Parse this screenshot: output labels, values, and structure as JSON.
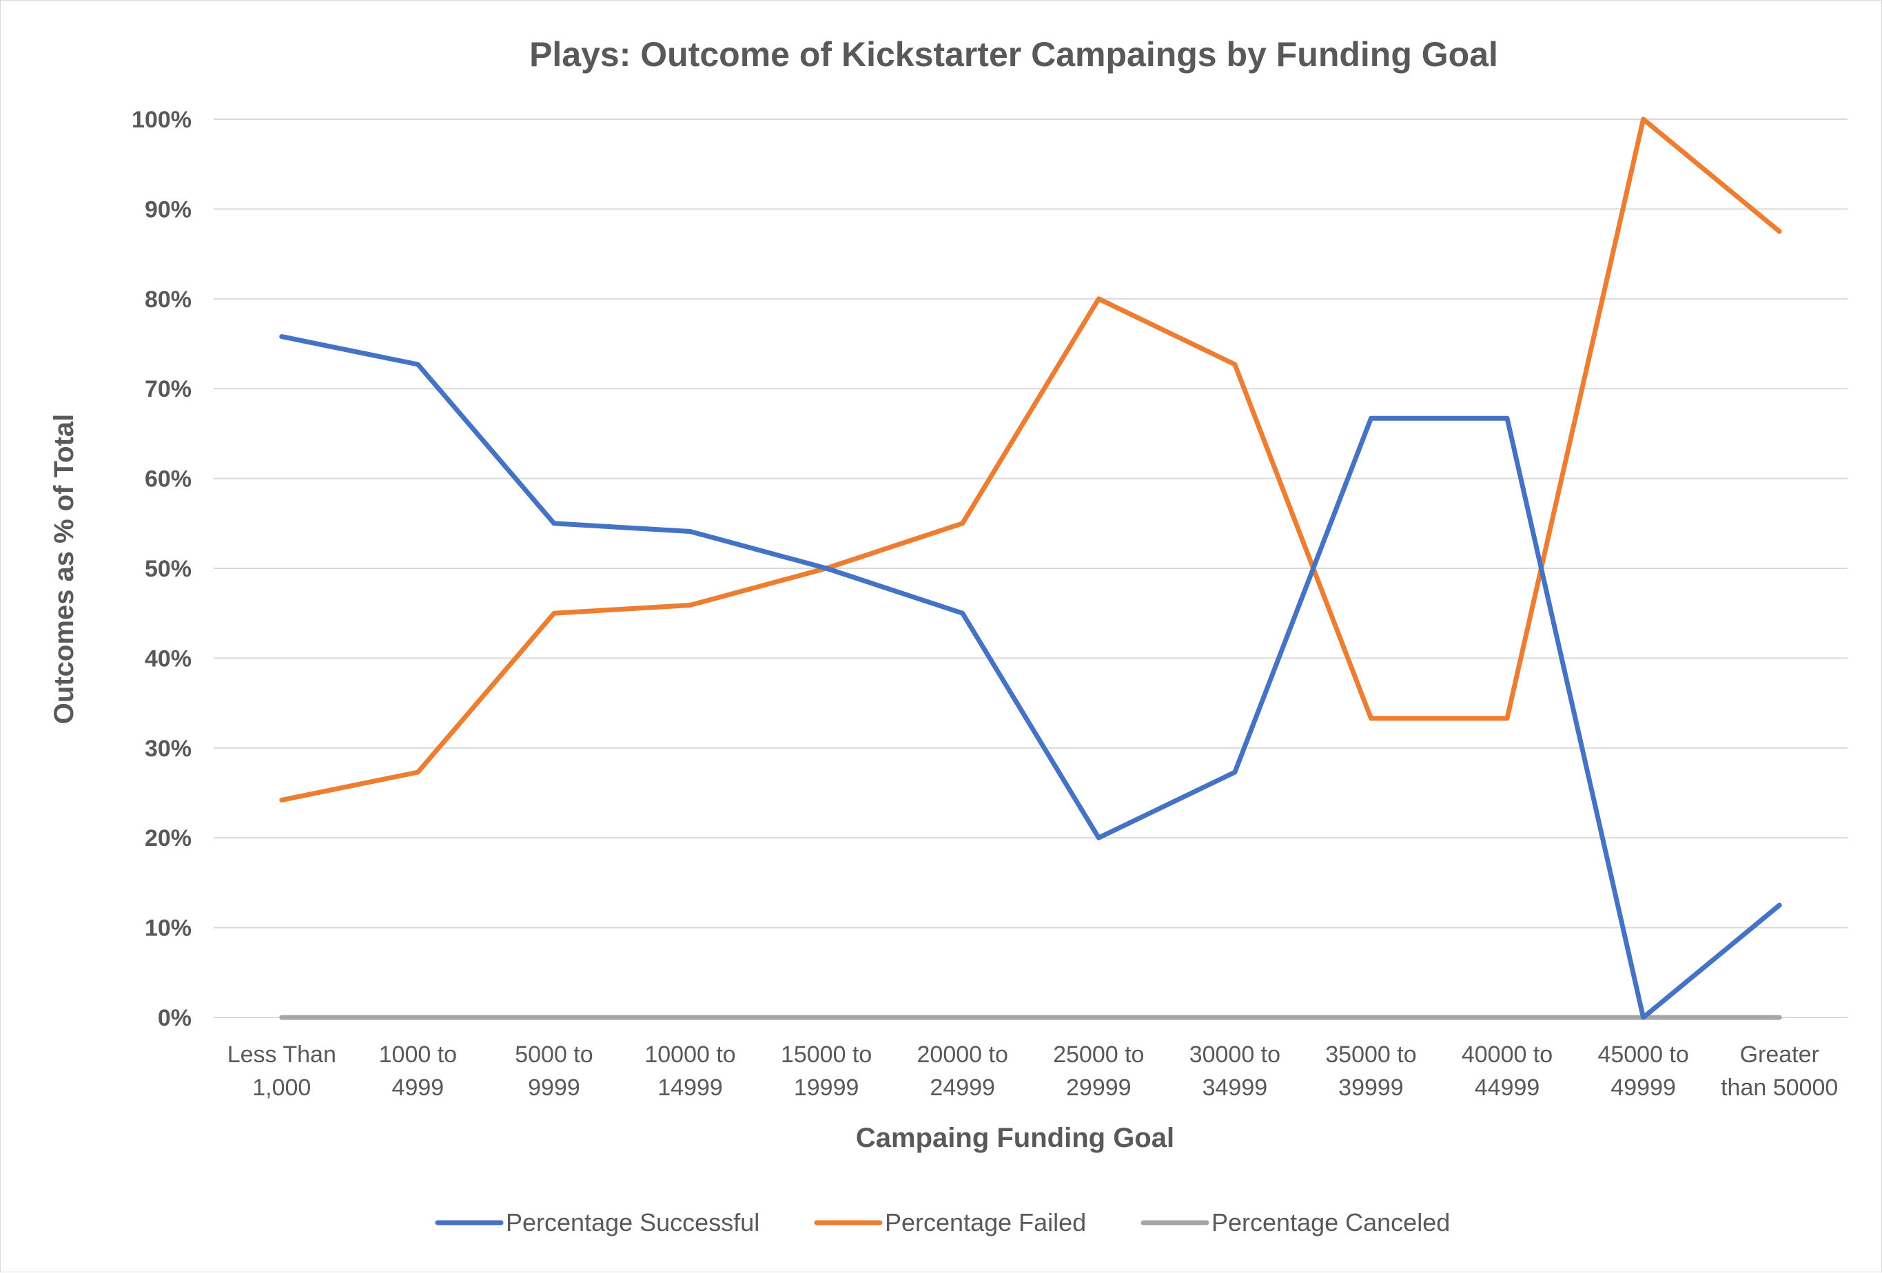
{
  "chart_data": {
    "type": "line",
    "title": "Plays: Outcome of Kickstarter Campaings by Funding Goal",
    "xlabel": "Campaing Funding Goal",
    "ylabel": "Outcomes as % of Total",
    "ylim": [
      0,
      100
    ],
    "yticks": [
      "0%",
      "10%",
      "20%",
      "30%",
      "40%",
      "50%",
      "60%",
      "70%",
      "80%",
      "90%",
      "100%"
    ],
    "categories": [
      [
        "Less Than",
        "1,000"
      ],
      [
        "1000 to",
        "4999"
      ],
      [
        "5000 to",
        "9999"
      ],
      [
        "10000 to",
        "14999"
      ],
      [
        "15000 to",
        "19999"
      ],
      [
        "20000 to",
        "24999"
      ],
      [
        "25000 to",
        "29999"
      ],
      [
        "30000 to",
        "34999"
      ],
      [
        "35000 to",
        "39999"
      ],
      [
        "40000 to",
        "44999"
      ],
      [
        "45000 to",
        "49999"
      ],
      [
        "Greater",
        "than 50000"
      ]
    ],
    "series": [
      {
        "name": "Percentage Successful",
        "color": "#4472C4",
        "values": [
          75.8,
          72.7,
          55.0,
          54.1,
          50.0,
          45.0,
          20.0,
          27.3,
          66.7,
          66.7,
          0.0,
          12.5
        ]
      },
      {
        "name": "Percentage Failed",
        "color": "#ED7D31",
        "values": [
          24.2,
          27.3,
          45.0,
          45.9,
          50.0,
          55.0,
          80.0,
          72.7,
          33.3,
          33.3,
          100.0,
          87.5
        ]
      },
      {
        "name": "Percentage Canceled",
        "color": "#A5A5A5",
        "values": [
          0,
          0,
          0,
          0,
          0,
          0,
          0,
          0,
          0,
          0,
          0,
          0
        ]
      }
    ],
    "grid": true,
    "legend_position": "bottom"
  }
}
